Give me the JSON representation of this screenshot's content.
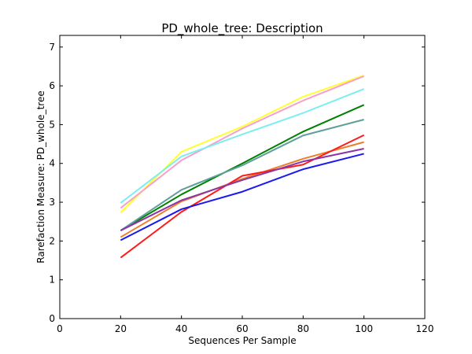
{
  "chart_data": {
    "type": "line",
    "title": "PD_whole_tree: Description",
    "xlabel": "Sequences Per Sample",
    "ylabel": "Rarefaction Measure: PD_whole_tree",
    "xlim": [
      0,
      120
    ],
    "ylim": [
      0,
      7.3
    ],
    "xticks": [
      "0",
      "20",
      "40",
      "60",
      "80",
      "100",
      "120"
    ],
    "yticks": [
      "0",
      "1",
      "2",
      "3",
      "4",
      "5",
      "6",
      "7"
    ],
    "grid": false,
    "legend": "none",
    "x": [
      20,
      40,
      60,
      80,
      100
    ],
    "series": [
      {
        "color": "#ffff33",
        "values": [
          2.73,
          4.3,
          4.95,
          5.72,
          6.27
        ]
      },
      {
        "color": "#f7a1c9",
        "values": [
          2.85,
          4.08,
          4.9,
          5.62,
          6.25
        ]
      },
      {
        "color": "#7aeef0",
        "values": [
          2.98,
          4.18,
          4.75,
          5.3,
          5.92
        ]
      },
      {
        "color": "#008000",
        "values": [
          2.27,
          3.2,
          4.0,
          4.82,
          5.51
        ]
      },
      {
        "color": "#5f9e9a",
        "values": [
          2.27,
          3.32,
          3.95,
          4.72,
          5.13
        ]
      },
      {
        "color": "#ee7d2a",
        "values": [
          2.1,
          3.02,
          3.6,
          4.12,
          4.55
        ]
      },
      {
        "color": "#ff1a1a",
        "values": [
          1.57,
          2.75,
          3.68,
          3.97,
          4.73
        ]
      },
      {
        "color": "#8b35a8",
        "values": [
          2.27,
          3.05,
          3.57,
          4.05,
          4.38
        ]
      },
      {
        "color": "#1a1aee",
        "values": [
          2.02,
          2.82,
          3.27,
          3.85,
          4.25
        ]
      }
    ]
  }
}
